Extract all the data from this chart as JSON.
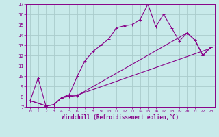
{
  "xlabel": "Windchill (Refroidissement éolien,°C)",
  "bg_color": "#c8eaea",
  "grid_color": "#aacccc",
  "line_color": "#880088",
  "xlim": [
    -0.5,
    23.5
  ],
  "ylim": [
    7,
    17
  ],
  "xticks": [
    0,
    1,
    2,
    3,
    4,
    5,
    6,
    7,
    8,
    9,
    10,
    11,
    12,
    13,
    14,
    15,
    16,
    17,
    18,
    19,
    20,
    21,
    22,
    23
  ],
  "yticks": [
    7,
    8,
    9,
    10,
    11,
    12,
    13,
    14,
    15,
    16,
    17
  ],
  "series1_x": [
    0,
    1,
    2,
    3,
    4,
    5,
    6,
    7,
    8,
    9,
    10,
    11,
    12,
    13,
    14,
    15,
    16,
    17,
    18,
    19,
    20,
    21,
    22,
    23
  ],
  "series1_y": [
    7.6,
    9.8,
    7.1,
    7.2,
    7.9,
    8.2,
    10.0,
    11.5,
    12.4,
    13.0,
    13.6,
    14.7,
    14.9,
    15.0,
    15.5,
    17.0,
    14.8,
    16.0,
    14.7,
    13.4,
    14.2,
    13.5,
    12.0,
    12.8
  ],
  "series2_x": [
    0,
    2,
    3,
    4,
    5,
    6,
    23
  ],
  "series2_y": [
    7.6,
    7.1,
    7.2,
    7.9,
    8.1,
    8.15,
    12.7
  ],
  "series3_x": [
    0,
    2,
    3,
    4,
    5,
    6,
    20,
    21,
    22,
    23
  ],
  "series3_y": [
    7.6,
    7.1,
    7.2,
    7.9,
    8.0,
    8.1,
    14.2,
    13.5,
    12.0,
    12.8
  ]
}
